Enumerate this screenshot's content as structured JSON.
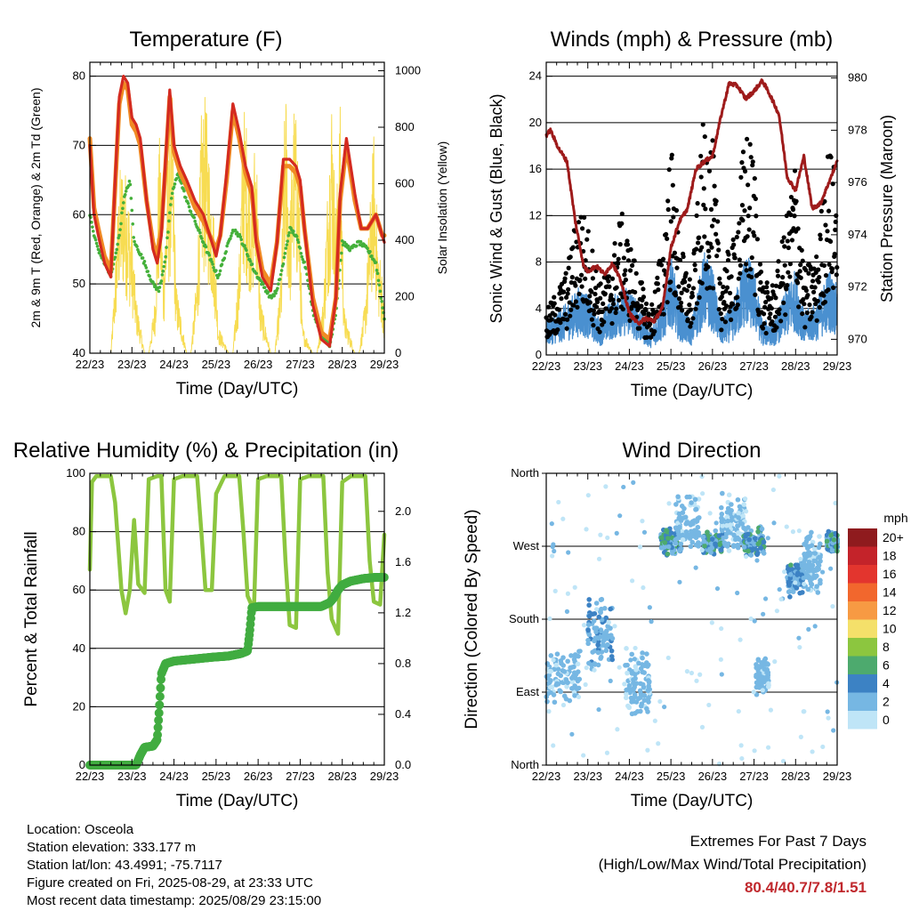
{
  "colors": {
    "temp_red": "#d42a20",
    "temp_orange": "#f08a24",
    "td_green": "#44b03a",
    "solar_yellow": "#f7dc52",
    "wind_blue": "#4a90d0",
    "gust_black": "#000000",
    "pressure_maroon": "#9e1b1b",
    "rh_green": "#8cc63f",
    "precip_green": "#41ac40",
    "extremes_red": "#c0282d"
  },
  "x_ticks": [
    "22/23",
    "23/23",
    "24/23",
    "25/23",
    "26/23",
    "27/23",
    "28/23",
    "29/23"
  ],
  "chart_data": [
    {
      "id": "temperature",
      "type": "line",
      "title": "Temperature (F)",
      "xlabel": "Time (Day/UTC)",
      "ylabel": "2m & 9m T (Red, Orange) & 2m Td (Green)",
      "y2label": "Solar Insolation (Yellow)",
      "ylim": [
        40,
        82
      ],
      "yticks": [
        40,
        50,
        60,
        70,
        80
      ],
      "y2lim": [
        0,
        1030
      ],
      "y2ticks": [
        0,
        200,
        400,
        600,
        800,
        1000
      ],
      "grid_y": [
        50,
        60,
        70,
        80
      ],
      "series": [
        {
          "key": "t2m",
          "x": [
            0,
            0.1,
            0.2,
            0.35,
            0.5,
            0.6,
            0.7,
            0.8,
            0.9,
            1.0,
            1.1,
            1.2,
            1.35,
            1.5,
            1.6,
            1.7,
            1.8,
            1.9,
            2.0,
            2.15,
            2.3,
            2.5,
            2.7,
            2.85,
            3.0,
            3.1,
            3.25,
            3.4,
            3.55,
            3.7,
            3.85,
            3.95,
            4.1,
            4.3,
            4.45,
            4.6,
            4.75,
            4.9,
            5.0,
            5.1,
            5.3,
            5.5,
            5.7,
            5.85,
            5.95,
            6.1,
            6.3,
            6.45,
            6.6,
            6.8,
            6.95,
            7.0
          ],
          "y": [
            70,
            60,
            57,
            53,
            51,
            65,
            77,
            80,
            79,
            74,
            73,
            71,
            62,
            55,
            53,
            57,
            68,
            78,
            70,
            67,
            65,
            62,
            60,
            57,
            54,
            57,
            66,
            76,
            72,
            67,
            64,
            56,
            51,
            49,
            56,
            68,
            68,
            67,
            65,
            58,
            47,
            42,
            41,
            48,
            63,
            71,
            63,
            58,
            58,
            60,
            57,
            56
          ]
        },
        {
          "key": "t9m",
          "x": [
            0,
            0.1,
            0.2,
            0.35,
            0.5,
            0.6,
            0.7,
            0.8,
            0.9,
            1.0,
            1.1,
            1.2,
            1.35,
            1.5,
            1.6,
            1.7,
            1.8,
            1.9,
            2.0,
            2.15,
            2.3,
            2.5,
            2.7,
            2.85,
            3.0,
            3.1,
            3.25,
            3.4,
            3.55,
            3.7,
            3.85,
            3.95,
            4.1,
            4.3,
            4.45,
            4.6,
            4.75,
            4.9,
            5.0,
            5.1,
            5.3,
            5.5,
            5.7,
            5.85,
            5.95,
            6.1,
            6.3,
            6.45,
            6.6,
            6.8,
            6.95,
            7.0
          ],
          "y": [
            71,
            61,
            58,
            54,
            52,
            64,
            76,
            79,
            78,
            73,
            72,
            70,
            62,
            56,
            54,
            58,
            67,
            77,
            69,
            66,
            64,
            61,
            59,
            57,
            55,
            57,
            65,
            75,
            71,
            66,
            63,
            57,
            52,
            50,
            56,
            67,
            67,
            66,
            64,
            58,
            48,
            43,
            42,
            48,
            62,
            70,
            62,
            58,
            58,
            60,
            57,
            57
          ]
        },
        {
          "key": "td2m",
          "x": [
            0,
            0.1,
            0.2,
            0.35,
            0.5,
            0.6,
            0.7,
            0.8,
            0.95,
            1.05,
            1.15,
            1.3,
            1.5,
            1.65,
            1.8,
            1.95,
            2.1,
            2.3,
            2.5,
            2.7,
            2.9,
            3.05,
            3.2,
            3.4,
            3.55,
            3.7,
            3.9,
            4.1,
            4.3,
            4.45,
            4.6,
            4.75,
            4.9,
            5.0,
            5.15,
            5.3,
            5.5,
            5.7,
            5.85,
            6.0,
            6.2,
            6.4,
            6.6,
            6.8,
            6.95,
            7.0
          ],
          "y": [
            60,
            57,
            55,
            53,
            51,
            54,
            57,
            62,
            65,
            56,
            55,
            53,
            50,
            49,
            54,
            63,
            66,
            62,
            59,
            56,
            53,
            51,
            54,
            58,
            57,
            55,
            52,
            50,
            48,
            49,
            53,
            58,
            57,
            55,
            52,
            46,
            43,
            41,
            46,
            56,
            55,
            56,
            55,
            53,
            47,
            45
          ]
        },
        {
          "key": "solar",
          "x": [
            0,
            0.05,
            0.2,
            0.3,
            0.5,
            0.6,
            0.7,
            0.8,
            0.9,
            1.0,
            1.1,
            1.3,
            1.4,
            1.55,
            1.65,
            1.75,
            1.85,
            1.95,
            2.05,
            2.3,
            2.4,
            2.55,
            2.65,
            2.75,
            2.85,
            2.95,
            3.05,
            3.3,
            3.4,
            3.55,
            3.65,
            3.75,
            3.85,
            3.95,
            4.05,
            4.3,
            4.4,
            4.55,
            4.65,
            4.75,
            4.85,
            4.95,
            5.05,
            5.3,
            5.4,
            5.55,
            5.65,
            5.75,
            5.85,
            5.95,
            6.05,
            6.3,
            6.4,
            6.55,
            6.65,
            6.75,
            6.85,
            6.95,
            7.0
          ],
          "y": [
            0,
            0,
            0,
            0,
            0,
            300,
            650,
            700,
            600,
            450,
            200,
            0,
            0,
            200,
            800,
            300,
            700,
            950,
            250,
            0,
            0,
            300,
            850,
            920,
            700,
            500,
            100,
            0,
            0,
            350,
            900,
            800,
            600,
            850,
            200,
            0,
            0,
            300,
            1000,
            500,
            900,
            780,
            100,
            0,
            0,
            200,
            600,
            950,
            500,
            900,
            150,
            0,
            0,
            200,
            500,
            800,
            400,
            300,
            100
          ]
        }
      ]
    },
    {
      "id": "winds",
      "type": "scatter",
      "title": "Winds (mph) & Pressure (mb)",
      "xlabel": "Time (Day/UTC)",
      "ylabel": "Sonic Wind & Gust (Blue, Black)",
      "y2label": "Station Pressure (Maroon)",
      "ylim": [
        0,
        25.2
      ],
      "yticks": [
        0,
        4,
        8,
        12,
        16,
        20,
        24
      ],
      "y2lim": [
        969.4,
        980.6
      ],
      "y2ticks": [
        970,
        972,
        974,
        976,
        978,
        980
      ],
      "grid_y": [
        4,
        8,
        12,
        16,
        20,
        24
      ],
      "wind_envelope": {
        "x": [
          0,
          0.5,
          0.8,
          1.0,
          1.3,
          1.5,
          1.8,
          2.0,
          2.3,
          2.5,
          2.8,
          3.0,
          3.2,
          3.5,
          3.8,
          4.0,
          4.2,
          4.5,
          4.8,
          5.0,
          5.2,
          5.5,
          5.8,
          6.0,
          6.2,
          6.5,
          6.8,
          7.0
        ],
        "y": [
          2,
          3,
          4,
          3.5,
          2,
          3,
          4,
          4,
          2.5,
          1.5,
          3,
          6,
          3,
          2,
          6,
          5,
          2,
          3,
          6,
          5,
          2,
          2,
          4,
          5,
          2.5,
          3,
          5,
          4
        ]
      },
      "gust_envelope": {
        "x": [
          0,
          0.5,
          0.8,
          1.0,
          1.3,
          1.5,
          1.8,
          2.0,
          2.3,
          2.5,
          2.8,
          3.0,
          3.2,
          3.5,
          3.8,
          4.0,
          4.2,
          4.5,
          4.8,
          5.0,
          5.2,
          5.5,
          5.8,
          6.0,
          6.2,
          6.5,
          6.8,
          7.0
        ],
        "y": [
          3,
          6,
          11,
          9,
          5,
          6,
          10,
          8,
          5,
          3,
          8,
          15,
          8,
          5,
          17,
          15,
          6,
          8,
          16,
          14,
          5,
          5,
          10,
          14,
          6,
          7,
          15,
          12
        ]
      },
      "pressure": {
        "x": [
          0,
          0.1,
          0.3,
          0.5,
          0.7,
          0.9,
          1.0,
          1.2,
          1.4,
          1.6,
          1.8,
          2.0,
          2.2,
          2.4,
          2.6,
          2.8,
          3.0,
          3.2,
          3.4,
          3.6,
          3.8,
          4.0,
          4.2,
          4.4,
          4.6,
          4.8,
          5.0,
          5.2,
          5.4,
          5.6,
          5.8,
          6.0,
          6.2,
          6.4,
          6.6,
          6.8,
          7.0
        ],
        "y": [
          977.8,
          978.0,
          977.3,
          976.8,
          974.5,
          972.8,
          972.6,
          972.8,
          972.5,
          972.9,
          972.2,
          971.0,
          970.6,
          970.8,
          970.7,
          971.2,
          973.5,
          974.5,
          975.0,
          976.5,
          976.8,
          977.0,
          978.5,
          979.8,
          979.7,
          979.2,
          979.5,
          979.9,
          979.3,
          978.6,
          976.2,
          975.7,
          977.0,
          975.0,
          975.2,
          976.0,
          976.8
        ]
      }
    },
    {
      "id": "rh_precip",
      "type": "line",
      "title": "Relative Humidity (%) & Precipitation (in)",
      "xlabel": "Time (Day/UTC)",
      "ylabel": "Percent & Total Rainfall",
      "ylim": [
        0,
        100
      ],
      "yticks": [
        0,
        20,
        40,
        60,
        80,
        100
      ],
      "y2lim": [
        0,
        2.3
      ],
      "y2ticks": [
        0.0,
        0.4,
        0.8,
        1.2,
        1.6,
        2.0
      ],
      "grid_y": [
        20,
        40,
        60,
        80
      ],
      "series": [
        {
          "key": "rh",
          "x": [
            0,
            0.05,
            0.15,
            0.3,
            0.5,
            0.6,
            0.75,
            0.85,
            0.95,
            1.05,
            1.15,
            1.3,
            1.4,
            1.6,
            1.7,
            1.8,
            1.9,
            2.0,
            2.2,
            2.4,
            2.55,
            2.65,
            2.75,
            2.9,
            3.0,
            3.2,
            3.4,
            3.55,
            3.65,
            3.75,
            3.9,
            4.0,
            4.2,
            4.4,
            4.55,
            4.65,
            4.75,
            4.9,
            5.0,
            5.2,
            5.4,
            5.55,
            5.65,
            5.75,
            5.9,
            6.0,
            6.2,
            6.4,
            6.55,
            6.65,
            6.75,
            6.9,
            7.0
          ],
          "y": [
            67,
            97,
            99,
            99,
            99,
            90,
            60,
            52,
            60,
            84,
            62,
            59,
            98,
            99,
            99,
            60,
            56,
            98,
            99,
            99,
            99,
            80,
            60,
            60,
            93,
            99,
            99,
            99,
            80,
            58,
            53,
            98,
            99,
            99,
            99,
            70,
            48,
            47,
            98,
            99,
            99,
            99,
            66,
            50,
            45,
            97,
            99,
            99,
            99,
            70,
            56,
            55,
            79
          ]
        },
        {
          "key": "precip",
          "x": [
            0,
            0.4,
            0.8,
            1.1,
            1.2,
            1.3,
            1.5,
            1.6,
            1.65,
            1.7,
            1.8,
            2.0,
            2.3,
            2.6,
            2.9,
            3.3,
            3.6,
            3.75,
            3.8,
            3.85,
            4.0,
            4.4,
            4.8,
            5.2,
            5.5,
            5.7,
            5.8,
            5.9,
            6.0,
            6.2,
            6.5,
            6.8,
            7.0
          ],
          "y": [
            0,
            0,
            0,
            0,
            0.08,
            0.14,
            0.15,
            0.2,
            0.44,
            0.72,
            0.8,
            0.82,
            0.83,
            0.84,
            0.85,
            0.86,
            0.88,
            0.9,
            1.05,
            1.24,
            1.25,
            1.25,
            1.25,
            1.25,
            1.25,
            1.28,
            1.32,
            1.38,
            1.42,
            1.45,
            1.47,
            1.48,
            1.48
          ]
        }
      ]
    },
    {
      "id": "wind_direction",
      "type": "scatter",
      "title": "Wind Direction",
      "xlabel": "Time (Day/UTC)",
      "ylabel": "Direction (Colored By Speed)",
      "ylim": [
        0,
        360
      ],
      "yticks": [
        "North",
        "East",
        "South",
        "West",
        "North"
      ],
      "grid_y": [
        90,
        180,
        270
      ],
      "colorbar_title": "mph",
      "colorbar_labels": [
        "20+",
        "18",
        "16",
        "14",
        "12",
        "10",
        "8",
        "6",
        "4",
        "2",
        "0"
      ],
      "colorbar_colors": [
        "#8f1b1e",
        "#c4232a",
        "#e3352e",
        "#f2672d",
        "#f79a43",
        "#f4e06a",
        "#8cc63f",
        "#4daa6e",
        "#3c82c4",
        "#76b7e3",
        "#bfe5f7"
      ],
      "clusters": [
        {
          "day": 0.4,
          "dir": 110,
          "spread": [
            0.4,
            40
          ],
          "speed": 2
        },
        {
          "day": 1.3,
          "dir": 160,
          "spread": [
            0.3,
            50
          ],
          "speed": 3
        },
        {
          "day": 2.2,
          "dir": 100,
          "spread": [
            0.3,
            45
          ],
          "speed": 2
        },
        {
          "day": 3.0,
          "dir": 275,
          "spread": [
            0.25,
            20
          ],
          "speed": 5
        },
        {
          "day": 3.4,
          "dir": 300,
          "spread": [
            0.3,
            40
          ],
          "speed": 2
        },
        {
          "day": 4.0,
          "dir": 275,
          "spread": [
            0.25,
            15
          ],
          "speed": 5
        },
        {
          "day": 4.5,
          "dir": 300,
          "spread": [
            0.3,
            40
          ],
          "speed": 2
        },
        {
          "day": 5.0,
          "dir": 275,
          "spread": [
            0.25,
            20
          ],
          "speed": 5
        },
        {
          "day": 5.2,
          "dir": 110,
          "spread": [
            0.15,
            25
          ],
          "speed": 2
        },
        {
          "day": 6.0,
          "dir": 230,
          "spread": [
            0.2,
            25
          ],
          "speed": 4
        },
        {
          "day": 6.4,
          "dir": 250,
          "spread": [
            0.2,
            40
          ],
          "speed": 2
        },
        {
          "day": 6.9,
          "dir": 275,
          "spread": [
            0.15,
            15
          ],
          "speed": 5
        }
      ]
    }
  ],
  "info": {
    "location": "Location: Osceola",
    "elevation": "Station elevation: 333.177 m",
    "latlon": "Station lat/lon: 43.4991; -75.7117",
    "created": "Figure created on Fri, 2025-08-29, at 23:33 UTC",
    "recent": "Most recent data timestamp: 2025/08/29 23:15:00"
  },
  "extremes": {
    "line1": "Extremes For Past 7 Days",
    "line2": "(High/Low/Max Wind/Total Precipitation)",
    "values": "80.4/40.7/7.8/1.51"
  }
}
